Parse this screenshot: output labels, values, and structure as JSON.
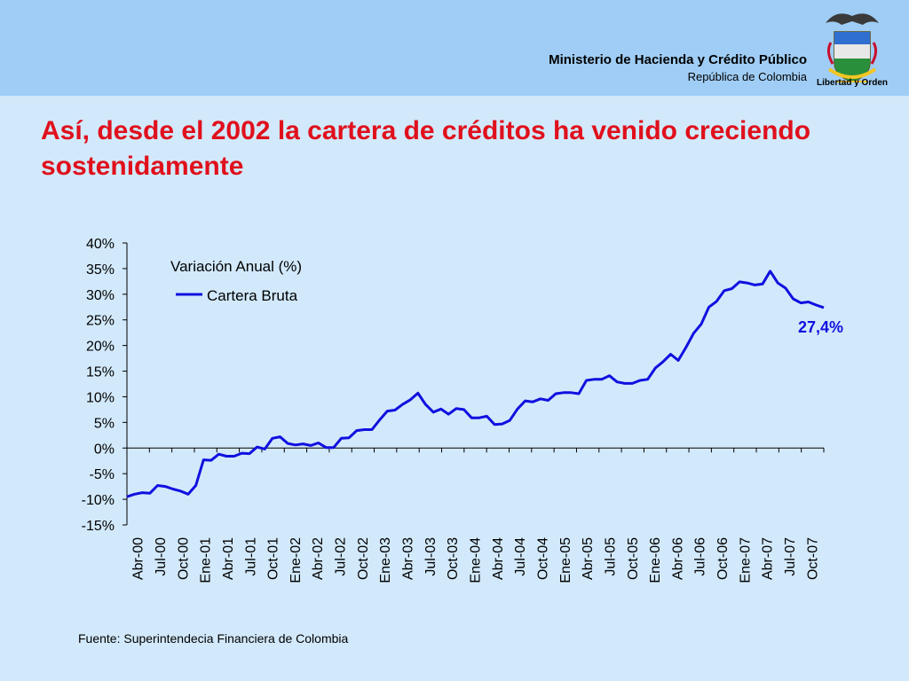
{
  "header": {
    "ministry_name": "Ministerio de Hacienda y Crédito Público",
    "ministry_sub": "República de Colombia",
    "seal_motto": "Libertad y Orden"
  },
  "slide": {
    "title": "Así, desde el 2002 la cartera de créditos ha venido creciendo sostenidamente",
    "source": "Fuente: Superintendecia Financiera de Colombia"
  },
  "colors": {
    "header_bg": "#9fcdf5",
    "slide_bg": "#d2e9fb",
    "title": "#e0101c",
    "series": "#1010e0",
    "end_label": "#1010e0"
  },
  "chart_data": {
    "type": "line",
    "title": "Variación Anual (%)",
    "ylim": [
      -15,
      40
    ],
    "yticks": [
      "40%",
      "35%",
      "30%",
      "25%",
      "20%",
      "15%",
      "10%",
      "5%",
      "0%",
      "-5%",
      "-10%",
      "-15%"
    ],
    "ytick_values": [
      40,
      35,
      30,
      25,
      20,
      15,
      10,
      5,
      0,
      -5,
      -10,
      -15
    ],
    "xtick_labels": [
      "Abr-00",
      "Jul-00",
      "Oct-00",
      "Ene-01",
      "Abr-01",
      "Jul-01",
      "Oct-01",
      "Ene-02",
      "Abr-02",
      "Jul-02",
      "Oct-02",
      "Ene-03",
      "Abr-03",
      "Jul-03",
      "Oct-03",
      "Ene-04",
      "Abr-04",
      "Jul-04",
      "Oct-04",
      "Ene-05",
      "Abr-05",
      "Jul-05",
      "Oct-05",
      "Ene-06",
      "Abr-06",
      "Jul-06",
      "Oct-06",
      "Ene-07",
      "Abr-07",
      "Jul-07",
      "Oct-07"
    ],
    "grid": false,
    "legend": "top-left",
    "end_label": "27,4%",
    "series": [
      {
        "name": "Cartera Bruta",
        "values": [
          -9.5,
          -9.0,
          -8.7,
          -8.8,
          -7.3,
          -7.5,
          -8.0,
          -8.4,
          -9.0,
          -7.3,
          -2.3,
          -2.4,
          -1.2,
          -1.6,
          -1.6,
          -1.0,
          -1.1,
          0.2,
          -0.2,
          1.9,
          2.2,
          0.9,
          0.6,
          0.8,
          0.5,
          1.0,
          0.1,
          0.1,
          1.9,
          2.0,
          3.4,
          3.6,
          3.6,
          5.5,
          7.2,
          7.4,
          8.5,
          9.4,
          10.7,
          8.5,
          7.0,
          7.6,
          6.6,
          7.7,
          7.5,
          5.9,
          5.9,
          6.2,
          4.6,
          4.7,
          5.4,
          7.6,
          9.2,
          9.0,
          9.6,
          9.3,
          10.6,
          10.8,
          10.8,
          10.6,
          13.2,
          13.4,
          13.4,
          14.1,
          12.9,
          12.6,
          12.6,
          13.2,
          13.4,
          15.6,
          16.8,
          18.3,
          17.1,
          19.6,
          22.4,
          24.2,
          27.5,
          28.6,
          30.7,
          31.1,
          32.4,
          32.2,
          31.8,
          32.0,
          34.5,
          32.2,
          31.2,
          29.1,
          28.3,
          28.5,
          27.9,
          27.4
        ]
      }
    ]
  }
}
